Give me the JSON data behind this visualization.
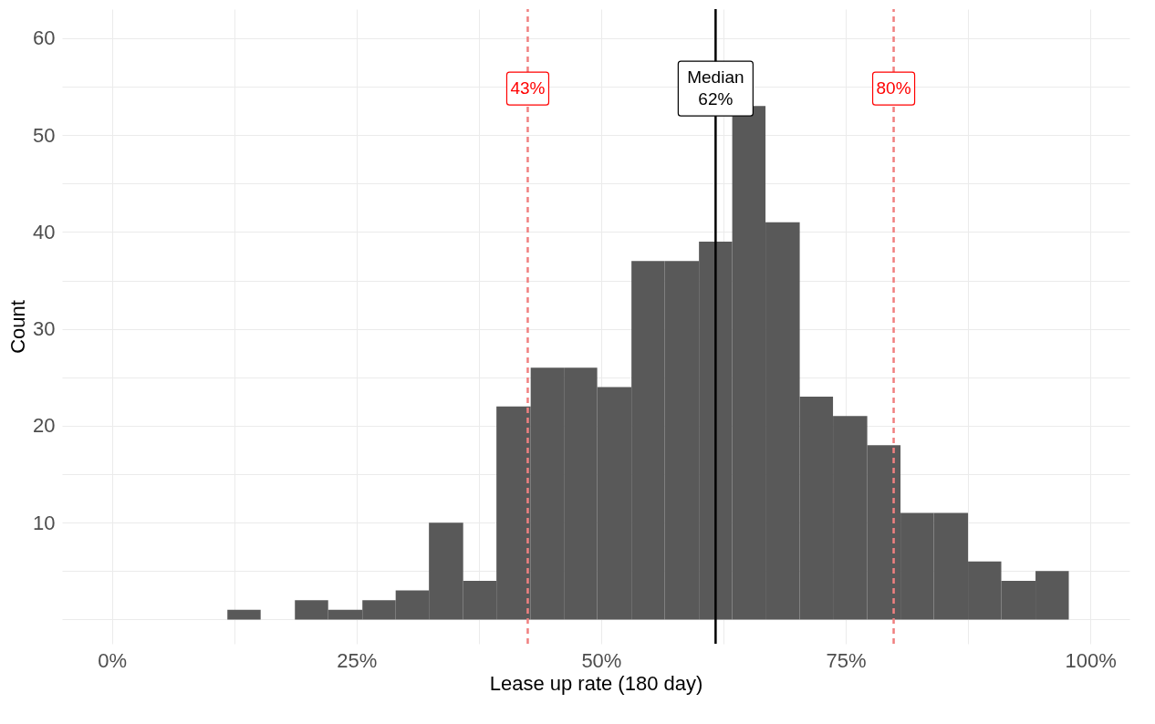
{
  "chart_data": {
    "type": "histogram",
    "xlabel": "Lease up rate (180 day)",
    "ylabel": "Count",
    "bins": [
      11.8,
      15.2,
      18.7,
      22.1,
      25.6,
      29.0,
      32.4,
      35.9,
      39.3,
      42.8,
      46.2,
      49.6,
      53.1,
      56.5,
      60.0,
      63.4,
      66.8,
      70.3,
      73.7,
      77.2,
      80.6,
      84.0,
      87.5,
      90.9,
      94.4,
      97.8
    ],
    "values": [
      1,
      0,
      2,
      1,
      2,
      3,
      10,
      4,
      22,
      26,
      26,
      24,
      37,
      37,
      39,
      53,
      41,
      23,
      21,
      18,
      11,
      11,
      6,
      4,
      5
    ],
    "color": "#595959",
    "xlim": [
      -5.1,
      104
    ],
    "xticks": [
      {
        "value": 0,
        "label": "0%"
      },
      {
        "value": 12.5,
        "label": null
      },
      {
        "value": 25,
        "label": "25%"
      },
      {
        "value": 37.5,
        "label": null
      },
      {
        "value": 50,
        "label": "50%"
      },
      {
        "value": 62.5,
        "label": null
      },
      {
        "value": 75,
        "label": "75%"
      },
      {
        "value": 87.5,
        "label": null
      },
      {
        "value": 100,
        "label": "100%"
      }
    ],
    "ylim": [
      -2.5,
      63
    ],
    "yticks": [
      {
        "value": 0,
        "label": null
      },
      {
        "value": 5,
        "label": null
      },
      10,
      {
        "value": 15,
        "label": null
      },
      20,
      {
        "value": 25,
        "label": null
      },
      30,
      {
        "value": 35,
        "label": null
      },
      40,
      {
        "value": 45,
        "label": null
      },
      50,
      {
        "value": 55,
        "label": null
      },
      60
    ],
    "grid": true,
    "ref_lines": [
      {
        "axis": "x",
        "value": 42.5,
        "label": "43%",
        "color": "#f08080",
        "line_style": "dashed"
      },
      {
        "axis": "x",
        "value": 61.7,
        "label": "Median\n62%",
        "color": "#000000",
        "line_style": "solid"
      },
      {
        "axis": "x",
        "value": 79.9,
        "label": "80%",
        "color": "#f08080",
        "line_style": "dashed"
      }
    ]
  }
}
